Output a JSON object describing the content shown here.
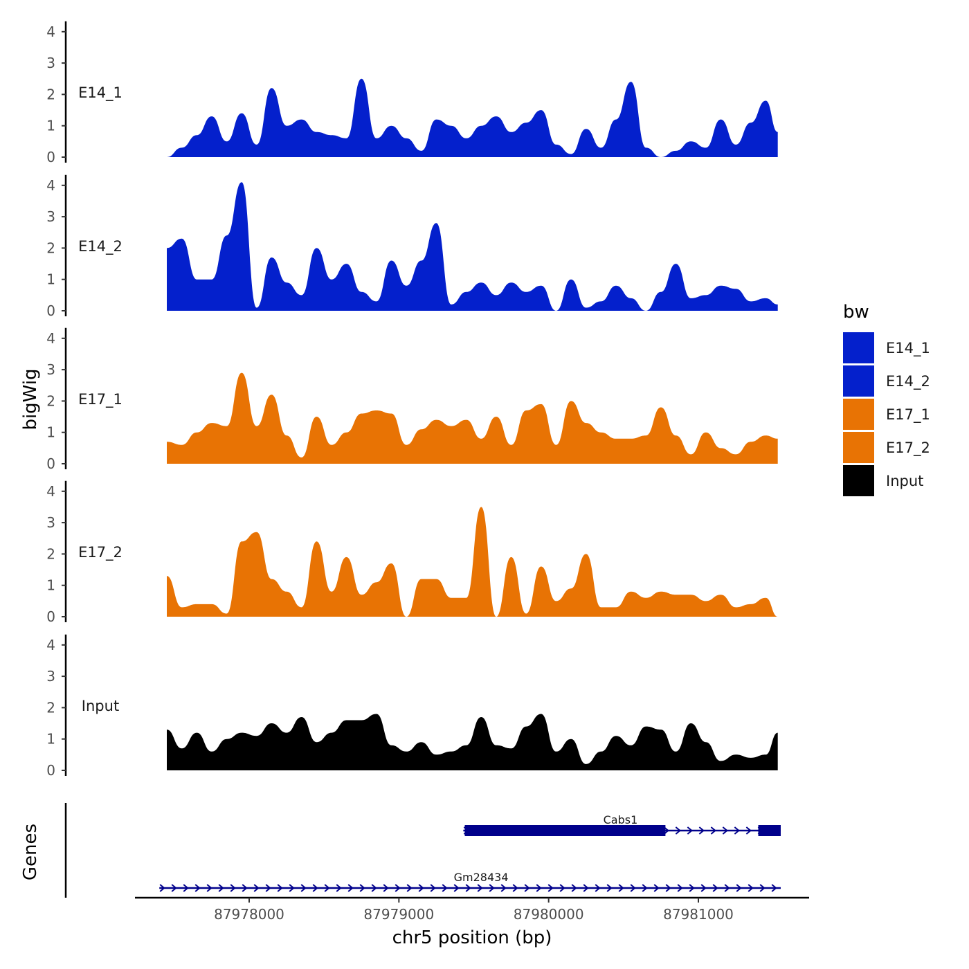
{
  "chart_data": {
    "type": "area",
    "xlabel": "chr5 position (bp)",
    "ylabel": "bigWig",
    "genes_label": "Genes",
    "chrom": "chr5",
    "xlim": [
      87977200,
      87981700
    ],
    "x_ticks": [
      87978000,
      87979000,
      87980000,
      87981000
    ],
    "x_tick_labels": [
      "87978000",
      "87979000",
      "87980000",
      "87981000"
    ],
    "ylim": [
      0,
      4.2
    ],
    "y_ticks": [
      0,
      1,
      2,
      3,
      4
    ],
    "y_tick_labels": [
      "0",
      "1",
      "2",
      "3",
      "4"
    ],
    "legend": {
      "title": "bw",
      "entries": [
        {
          "label": "E14_1",
          "color": "#0420CC"
        },
        {
          "label": "E14_2",
          "color": "#0420CC"
        },
        {
          "label": "E17_1",
          "color": "#E87304"
        },
        {
          "label": "E17_2",
          "color": "#E87304"
        },
        {
          "label": "Input",
          "color": "#000000"
        }
      ]
    },
    "x": [
      87977450,
      87977550,
      87977650,
      87977750,
      87977850,
      87977950,
      87978050,
      87978150,
      87978250,
      87978350,
      87978450,
      87978550,
      87978650,
      87978750,
      87978850,
      87978950,
      87979050,
      87979150,
      87979250,
      87979350,
      87979450,
      87979550,
      87979650,
      87979750,
      87979850,
      87979950,
      87980050,
      87980150,
      87980250,
      87980350,
      87980450,
      87980550,
      87980650,
      87980750,
      87980850,
      87980950,
      87981050,
      87981150,
      87981250,
      87981350,
      87981450,
      87981530
    ],
    "series": [
      {
        "name": "E14_1",
        "color": "#0420CC",
        "values": [
          0.0,
          0.3,
          0.7,
          1.3,
          0.5,
          1.4,
          0.4,
          2.2,
          1.0,
          1.2,
          0.8,
          0.7,
          0.6,
          2.5,
          0.6,
          1.0,
          0.6,
          0.2,
          1.2,
          1.0,
          0.6,
          1.0,
          1.3,
          0.8,
          1.1,
          1.5,
          0.4,
          0.1,
          0.9,
          0.3,
          1.2,
          2.4,
          0.3,
          0.0,
          0.2,
          0.5,
          0.3,
          1.2,
          0.4,
          1.1,
          1.8,
          0.8
        ]
      },
      {
        "name": "E14_2",
        "color": "#0420CC",
        "values": [
          2.0,
          2.3,
          1.0,
          1.0,
          2.4,
          4.1,
          0.1,
          1.7,
          0.9,
          0.5,
          2.0,
          1.0,
          1.5,
          0.6,
          0.3,
          1.6,
          0.8,
          1.6,
          2.8,
          0.2,
          0.6,
          0.9,
          0.5,
          0.9,
          0.6,
          0.8,
          0.0,
          1.0,
          0.1,
          0.3,
          0.8,
          0.4,
          0.0,
          0.6,
          1.5,
          0.4,
          0.5,
          0.8,
          0.7,
          0.3,
          0.4,
          0.2
        ]
      },
      {
        "name": "E17_1",
        "color": "#E87304",
        "values": [
          0.7,
          0.6,
          1.0,
          1.3,
          1.2,
          2.9,
          1.2,
          2.2,
          0.9,
          0.2,
          1.5,
          0.6,
          1.0,
          1.6,
          1.7,
          1.6,
          0.6,
          1.1,
          1.4,
          1.2,
          1.4,
          0.8,
          1.5,
          0.6,
          1.7,
          1.9,
          0.6,
          2.0,
          1.3,
          1.0,
          0.8,
          0.8,
          0.9,
          1.8,
          0.9,
          0.3,
          1.0,
          0.5,
          0.3,
          0.7,
          0.9,
          0.8
        ]
      },
      {
        "name": "E17_2",
        "color": "#E87304",
        "values": [
          1.3,
          0.3,
          0.4,
          0.4,
          0.1,
          2.4,
          2.7,
          1.2,
          0.8,
          0.3,
          2.4,
          0.8,
          1.9,
          0.7,
          1.1,
          1.7,
          0.0,
          1.2,
          1.2,
          0.6,
          0.6,
          3.5,
          0.0,
          1.9,
          0.1,
          1.6,
          0.5,
          0.9,
          2.0,
          0.3,
          0.3,
          0.8,
          0.6,
          0.8,
          0.7,
          0.7,
          0.5,
          0.7,
          0.3,
          0.4,
          0.6,
          0.0
        ]
      },
      {
        "name": "Input",
        "color": "#000000",
        "values": [
          1.3,
          0.7,
          1.2,
          0.6,
          1.0,
          1.2,
          1.1,
          1.5,
          1.2,
          1.7,
          0.9,
          1.2,
          1.6,
          1.6,
          1.8,
          0.8,
          0.6,
          0.9,
          0.5,
          0.6,
          0.8,
          1.7,
          0.8,
          0.7,
          1.4,
          1.8,
          0.6,
          1.0,
          0.2,
          0.6,
          1.1,
          0.8,
          1.4,
          1.3,
          0.6,
          1.5,
          0.9,
          0.3,
          0.5,
          0.4,
          0.5,
          1.2
        ]
      }
    ],
    "genes": [
      {
        "name": "Cabs1",
        "start": 87979430,
        "end": 87981550,
        "strand": "+",
        "row": 1,
        "exons": [
          [
            87979440,
            87980780
          ],
          [
            87981400,
            87981550
          ]
        ],
        "color": "#00008B"
      },
      {
        "name": "Gm28434",
        "start": 87977400,
        "end": 87981550,
        "strand": "+",
        "row": 2,
        "exons": [],
        "color": "#00008B"
      }
    ]
  }
}
